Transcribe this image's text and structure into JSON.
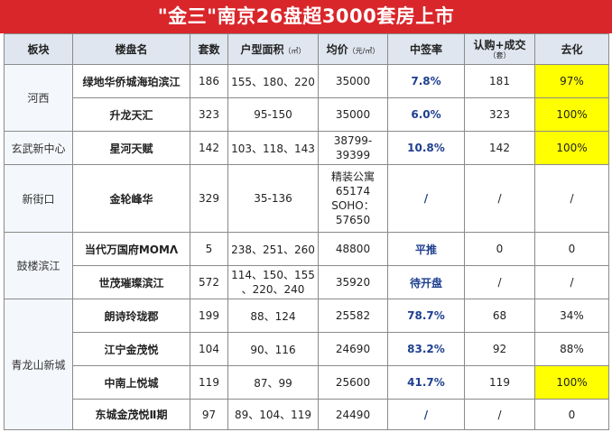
{
  "title": "\"金三\"南京26盘超3000套房上市",
  "headers": {
    "region": "板块",
    "name": "楼盘名",
    "units": "套数",
    "area": "户型面积",
    "area_unit": "（㎡）",
    "price": "均价",
    "price_unit": "（元/㎡）",
    "rate": "中签率",
    "subscribed": "认购+成交",
    "subscribed_unit": "（套）",
    "destock": "去化"
  },
  "regions": {
    "hexi": "河西",
    "xuanwu": "玄武新中心",
    "xinjiekou": "新街口",
    "gulou": "鼓楼滨江",
    "qinglong": "青龙山新城"
  },
  "rows": [
    {
      "name": "绿地华侨城海珀滨江",
      "units": "186",
      "area": "155、180、220",
      "price": "35000",
      "rate": "7.8%",
      "subscribed": "181",
      "destock": "97%"
    },
    {
      "name": "升龙天汇",
      "units": "323",
      "area": "95-150",
      "price": "35000",
      "rate": "6.0%",
      "subscribed": "323",
      "destock": "100%"
    },
    {
      "name": "星河天赋",
      "units": "142",
      "area": "103、118、143",
      "price_l1": "38799-",
      "price_l2": "39399",
      "rate": "10.8%",
      "subscribed": "142",
      "destock": "100%"
    },
    {
      "name": "金轮峰华",
      "units": "329",
      "area": "35-136",
      "price_l1": "精装公寓",
      "price_l2": "65174",
      "price_l3": "SOHO：",
      "price_l4": "57650",
      "rate": "/",
      "subscribed": "/",
      "destock": "/"
    },
    {
      "name": "当代万国府MOMΛ",
      "units": "5",
      "area": "238、251、260",
      "price": "48800",
      "rate": "平推",
      "subscribed": "0",
      "destock": "0"
    },
    {
      "name": "世茂璀璨滨江",
      "units": "572",
      "area_l1": "114、150、155",
      "area_l2": "、220、240",
      "price": "35920",
      "rate": "待开盘",
      "subscribed": "/",
      "destock": "/"
    },
    {
      "name": "朗诗玲珑郡",
      "units": "199",
      "area": "88、124",
      "price": "25582",
      "rate": "78.7%",
      "subscribed": "68",
      "destock": "34%"
    },
    {
      "name": "江宁金茂悦",
      "units": "104",
      "area": "90、116",
      "price": "24690",
      "rate": "83.2%",
      "subscribed": "92",
      "destock": "88%"
    },
    {
      "name": "中南上悦城",
      "units": "119",
      "area": "87、99",
      "price": "25600",
      "rate": "41.7%",
      "subscribed": "119",
      "destock": "100%"
    },
    {
      "name": "东城金茂悦Ⅱ期",
      "units": "97",
      "area": "89、104、119",
      "price": "24490",
      "rate": "/",
      "subscribed": "/",
      "destock": "0"
    }
  ],
  "colors": {
    "title_bg": "#d9262b",
    "header_bg": "#dfe6ef",
    "highlight": "#ffff00",
    "rate_text": "#1f3f8f"
  }
}
